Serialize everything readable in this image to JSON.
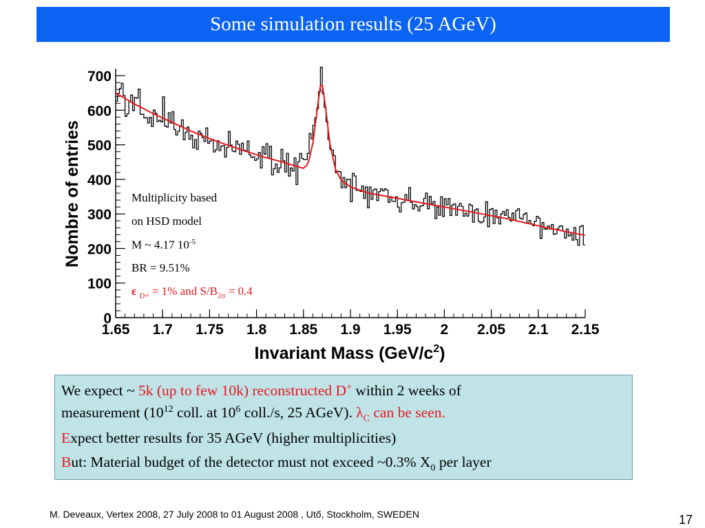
{
  "slide": {
    "title": "Some simulation results (25 AGeV)",
    "footer": "M. Deveaux, Vertex 2008, 27 July 2008 to 01 August 2008 , Utő, Stockholm, SWEDEN",
    "page_number": "17"
  },
  "colors": {
    "title_bar": "#0b63f3",
    "fit_curve": "#e8171b",
    "highlight": "#e8171b",
    "info_box": "#bfe3e7"
  },
  "annotations": {
    "line1": "Multiplicity based",
    "line2": "on HSD model",
    "multiplicity_prefix": "M ~ 4.17 10",
    "multiplicity_exp": "-5",
    "branching_ratio": "BR = 9.51%",
    "eff_symbol": "ε",
    "eff_sub": "D+",
    "eff_text": " = 1%  and S/B",
    "sb_sub": "2σ",
    "sb_value": " = 0.4"
  },
  "info_box": {
    "l1_a": "We expect ~ ",
    "l1_red": "5k (up to few 10k) reconstructed D",
    "l1_red_sup": "+",
    "l1_b": " within 2 weeks of",
    "l2_a": "measurement (10",
    "l2_sup1": "12",
    "l2_b": " coll. at 10",
    "l2_sup2": "6",
    "l2_c": " coll./s, 25 AGeV). ",
    "l2_lambda": "λ",
    "l2_lambda_sub": "C",
    "l2_d": " can be seen.",
    "l3_first": "E",
    "l3_rest": "xpect better results for 35 AGeV (higher multiplicities)",
    "l4_first": "B",
    "l4_rest": "ut: Material budget of the detector must not exceed ~0.3% X",
    "l4_sub": "0",
    "l4_end": " per layer"
  },
  "chart_data": {
    "type": "line",
    "xlabel": "Invariant Mass (GeV/c",
    "xlabel_sup": "2",
    "xlabel_end": ")",
    "ylabel": "Nombre of entries",
    "xlim": [
      1.65,
      2.15
    ],
    "ylim": [
      0,
      720
    ],
    "x_ticks": [
      "1.65",
      "1.7",
      "1.75",
      "1.8",
      "1.85",
      "1.9",
      "1.95",
      "2",
      "2.05",
      "2.1",
      "2.15"
    ],
    "y_ticks": [
      "0",
      "100",
      "200",
      "300",
      "400",
      "500",
      "600",
      "700"
    ],
    "peak": {
      "mass": 1.869,
      "height": 690
    },
    "fit_points": [
      [
        1.65,
        650
      ],
      [
        1.67,
        618
      ],
      [
        1.69,
        590
      ],
      [
        1.71,
        565
      ],
      [
        1.73,
        540
      ],
      [
        1.75,
        518
      ],
      [
        1.77,
        498
      ],
      [
        1.79,
        480
      ],
      [
        1.81,
        463
      ],
      [
        1.83,
        448
      ],
      [
        1.85,
        432
      ],
      [
        1.855,
        445
      ],
      [
        1.86,
        505
      ],
      [
        1.865,
        610
      ],
      [
        1.869,
        690
      ],
      [
        1.873,
        620
      ],
      [
        1.878,
        505
      ],
      [
        1.884,
        430
      ],
      [
        1.89,
        398
      ],
      [
        1.9,
        378
      ],
      [
        1.92,
        360
      ],
      [
        1.95,
        345
      ],
      [
        1.98,
        330
      ],
      [
        2.0,
        320
      ],
      [
        2.03,
        305
      ],
      [
        2.06,
        290
      ],
      [
        2.09,
        272
      ],
      [
        2.12,
        254
      ],
      [
        2.15,
        238
      ]
    ],
    "grid": false,
    "legend": "none"
  }
}
